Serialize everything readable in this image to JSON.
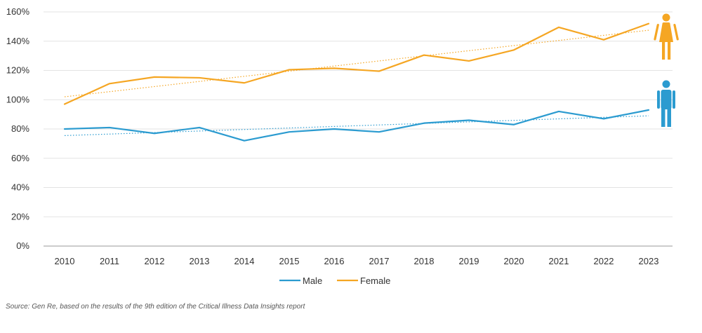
{
  "chart_data": {
    "type": "line",
    "x": [
      "2010",
      "2011",
      "2012",
      "2013",
      "2014",
      "2015",
      "2016",
      "2017",
      "2018",
      "2019",
      "2020",
      "2021",
      "2022",
      "2023"
    ],
    "series": [
      {
        "name": "Male",
        "color": "#2b9bd0",
        "icon": "male-icon",
        "values": [
          80,
          81,
          77,
          81,
          72,
          78,
          80,
          78,
          84,
          86,
          83,
          92,
          87,
          93
        ],
        "trend": [
          75.5,
          89
        ]
      },
      {
        "name": "Female",
        "color": "#f5a623",
        "icon": "female-icon",
        "values": [
          97,
          111,
          115.5,
          115,
          111.5,
          120.5,
          121.5,
          119.5,
          130.5,
          126.5,
          134,
          149.5,
          141,
          152
        ],
        "trend": [
          102,
          147.5
        ]
      }
    ],
    "ylim": [
      0,
      160
    ],
    "yticks": [
      0,
      20,
      40,
      60,
      80,
      100,
      120,
      140,
      160
    ],
    "ytick_labels": [
      "0%",
      "20%",
      "40%",
      "60%",
      "80%",
      "100%",
      "120%",
      "140%",
      "160%"
    ],
    "grid": true,
    "legend": "bottom",
    "title": "",
    "xlabel": "",
    "ylabel": ""
  },
  "source": "Source: Gen Re, based on the results of the 9th edition of the Critical Illness Data Insights report"
}
